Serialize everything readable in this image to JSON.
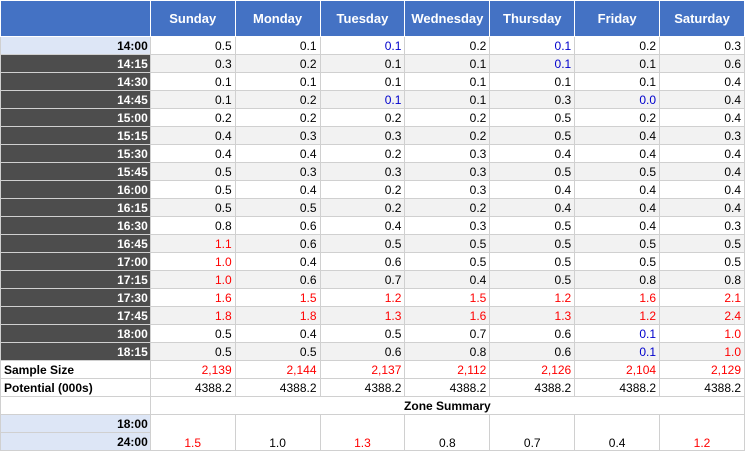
{
  "columns": [
    "Sunday",
    "Monday",
    "Tuesday",
    "Wednesday",
    "Thursday",
    "Friday",
    "Saturday"
  ],
  "rows": [
    {
      "time": "14:00",
      "values": [
        "0.5",
        "0.1",
        "0.1",
        "0.2",
        "0.1",
        "0.2",
        "0.3"
      ],
      "colors": [
        "",
        "",
        "blue",
        "",
        "blue",
        "",
        ""
      ]
    },
    {
      "time": "14:15",
      "values": [
        "0.3",
        "0.2",
        "0.1",
        "0.1",
        "0.1",
        "0.1",
        "0.6"
      ],
      "colors": [
        "",
        "",
        "",
        "",
        "blue",
        "",
        ""
      ]
    },
    {
      "time": "14:30",
      "values": [
        "0.1",
        "0.1",
        "0.1",
        "0.1",
        "0.1",
        "0.1",
        "0.4"
      ],
      "colors": [
        "",
        "",
        "",
        "",
        "",
        "",
        ""
      ]
    },
    {
      "time": "14:45",
      "values": [
        "0.1",
        "0.2",
        "0.1",
        "0.1",
        "0.3",
        "0.0",
        "0.4"
      ],
      "colors": [
        "",
        "",
        "blue",
        "",
        "",
        "blue",
        ""
      ]
    },
    {
      "time": "15:00",
      "values": [
        "0.2",
        "0.2",
        "0.2",
        "0.2",
        "0.5",
        "0.2",
        "0.4"
      ],
      "colors": [
        "",
        "",
        "",
        "",
        "",
        "",
        ""
      ]
    },
    {
      "time": "15:15",
      "values": [
        "0.4",
        "0.3",
        "0.3",
        "0.2",
        "0.5",
        "0.4",
        "0.3"
      ],
      "colors": [
        "",
        "",
        "",
        "",
        "",
        "",
        ""
      ]
    },
    {
      "time": "15:30",
      "values": [
        "0.4",
        "0.4",
        "0.2",
        "0.3",
        "0.4",
        "0.4",
        "0.4"
      ],
      "colors": [
        "",
        "",
        "",
        "",
        "",
        "",
        ""
      ]
    },
    {
      "time": "15:45",
      "values": [
        "0.5",
        "0.3",
        "0.3",
        "0.3",
        "0.5",
        "0.5",
        "0.4"
      ],
      "colors": [
        "",
        "",
        "",
        "",
        "",
        "",
        ""
      ]
    },
    {
      "time": "16:00",
      "values": [
        "0.5",
        "0.4",
        "0.2",
        "0.3",
        "0.4",
        "0.4",
        "0.4"
      ],
      "colors": [
        "",
        "",
        "",
        "",
        "",
        "",
        ""
      ]
    },
    {
      "time": "16:15",
      "values": [
        "0.5",
        "0.5",
        "0.2",
        "0.2",
        "0.4",
        "0.4",
        "0.4"
      ],
      "colors": [
        "",
        "",
        "",
        "",
        "",
        "",
        ""
      ]
    },
    {
      "time": "16:30",
      "values": [
        "0.8",
        "0.6",
        "0.4",
        "0.3",
        "0.5",
        "0.4",
        "0.3"
      ],
      "colors": [
        "",
        "",
        "",
        "",
        "",
        "",
        ""
      ]
    },
    {
      "time": "16:45",
      "values": [
        "1.1",
        "0.6",
        "0.5",
        "0.5",
        "0.5",
        "0.5",
        "0.5"
      ],
      "colors": [
        "red",
        "",
        "",
        "",
        "",
        "",
        ""
      ]
    },
    {
      "time": "17:00",
      "values": [
        "1.0",
        "0.4",
        "0.6",
        "0.5",
        "0.5",
        "0.5",
        "0.5"
      ],
      "colors": [
        "red",
        "",
        "",
        "",
        "",
        "",
        ""
      ]
    },
    {
      "time": "17:15",
      "values": [
        "1.0",
        "0.6",
        "0.7",
        "0.4",
        "0.5",
        "0.8",
        "0.8"
      ],
      "colors": [
        "red",
        "",
        "",
        "",
        "",
        "",
        ""
      ]
    },
    {
      "time": "17:30",
      "values": [
        "1.6",
        "1.5",
        "1.2",
        "1.5",
        "1.2",
        "1.6",
        "2.1"
      ],
      "colors": [
        "red",
        "red",
        "red",
        "red",
        "red",
        "red",
        "red"
      ]
    },
    {
      "time": "17:45",
      "values": [
        "1.8",
        "1.8",
        "1.3",
        "1.6",
        "1.3",
        "1.2",
        "2.4"
      ],
      "colors": [
        "red",
        "red",
        "red",
        "red",
        "red",
        "red",
        "red"
      ]
    },
    {
      "time": "18:00",
      "values": [
        "0.5",
        "0.4",
        "0.5",
        "0.7",
        "0.6",
        "0.1",
        "1.0"
      ],
      "colors": [
        "",
        "",
        "",
        "",
        "",
        "blue",
        "red"
      ]
    },
    {
      "time": "18:15",
      "values": [
        "0.5",
        "0.5",
        "0.6",
        "0.8",
        "0.6",
        "0.1",
        "1.0"
      ],
      "colors": [
        "",
        "",
        "",
        "",
        "",
        "blue",
        "red"
      ]
    }
  ],
  "sample_size": {
    "label": "Sample Size",
    "values": [
      "2,139",
      "2,144",
      "2,137",
      "2,112",
      "2,126",
      "2,104",
      "2,129"
    ]
  },
  "potential": {
    "label": "Potential (000s)",
    "values": [
      "4388.2",
      "4388.2",
      "4388.2",
      "4388.2",
      "4388.2",
      "4388.2",
      "4388.2"
    ]
  },
  "zone_summary": {
    "title": "Zone Summary",
    "start_time": "18:00",
    "end_time": "24:00",
    "values": [
      "1.5",
      "1.0",
      "1.3",
      "0.8",
      "0.7",
      "0.4",
      "1.2"
    ],
    "colors": [
      "red",
      "",
      "red",
      "",
      "",
      "",
      "red"
    ]
  }
}
